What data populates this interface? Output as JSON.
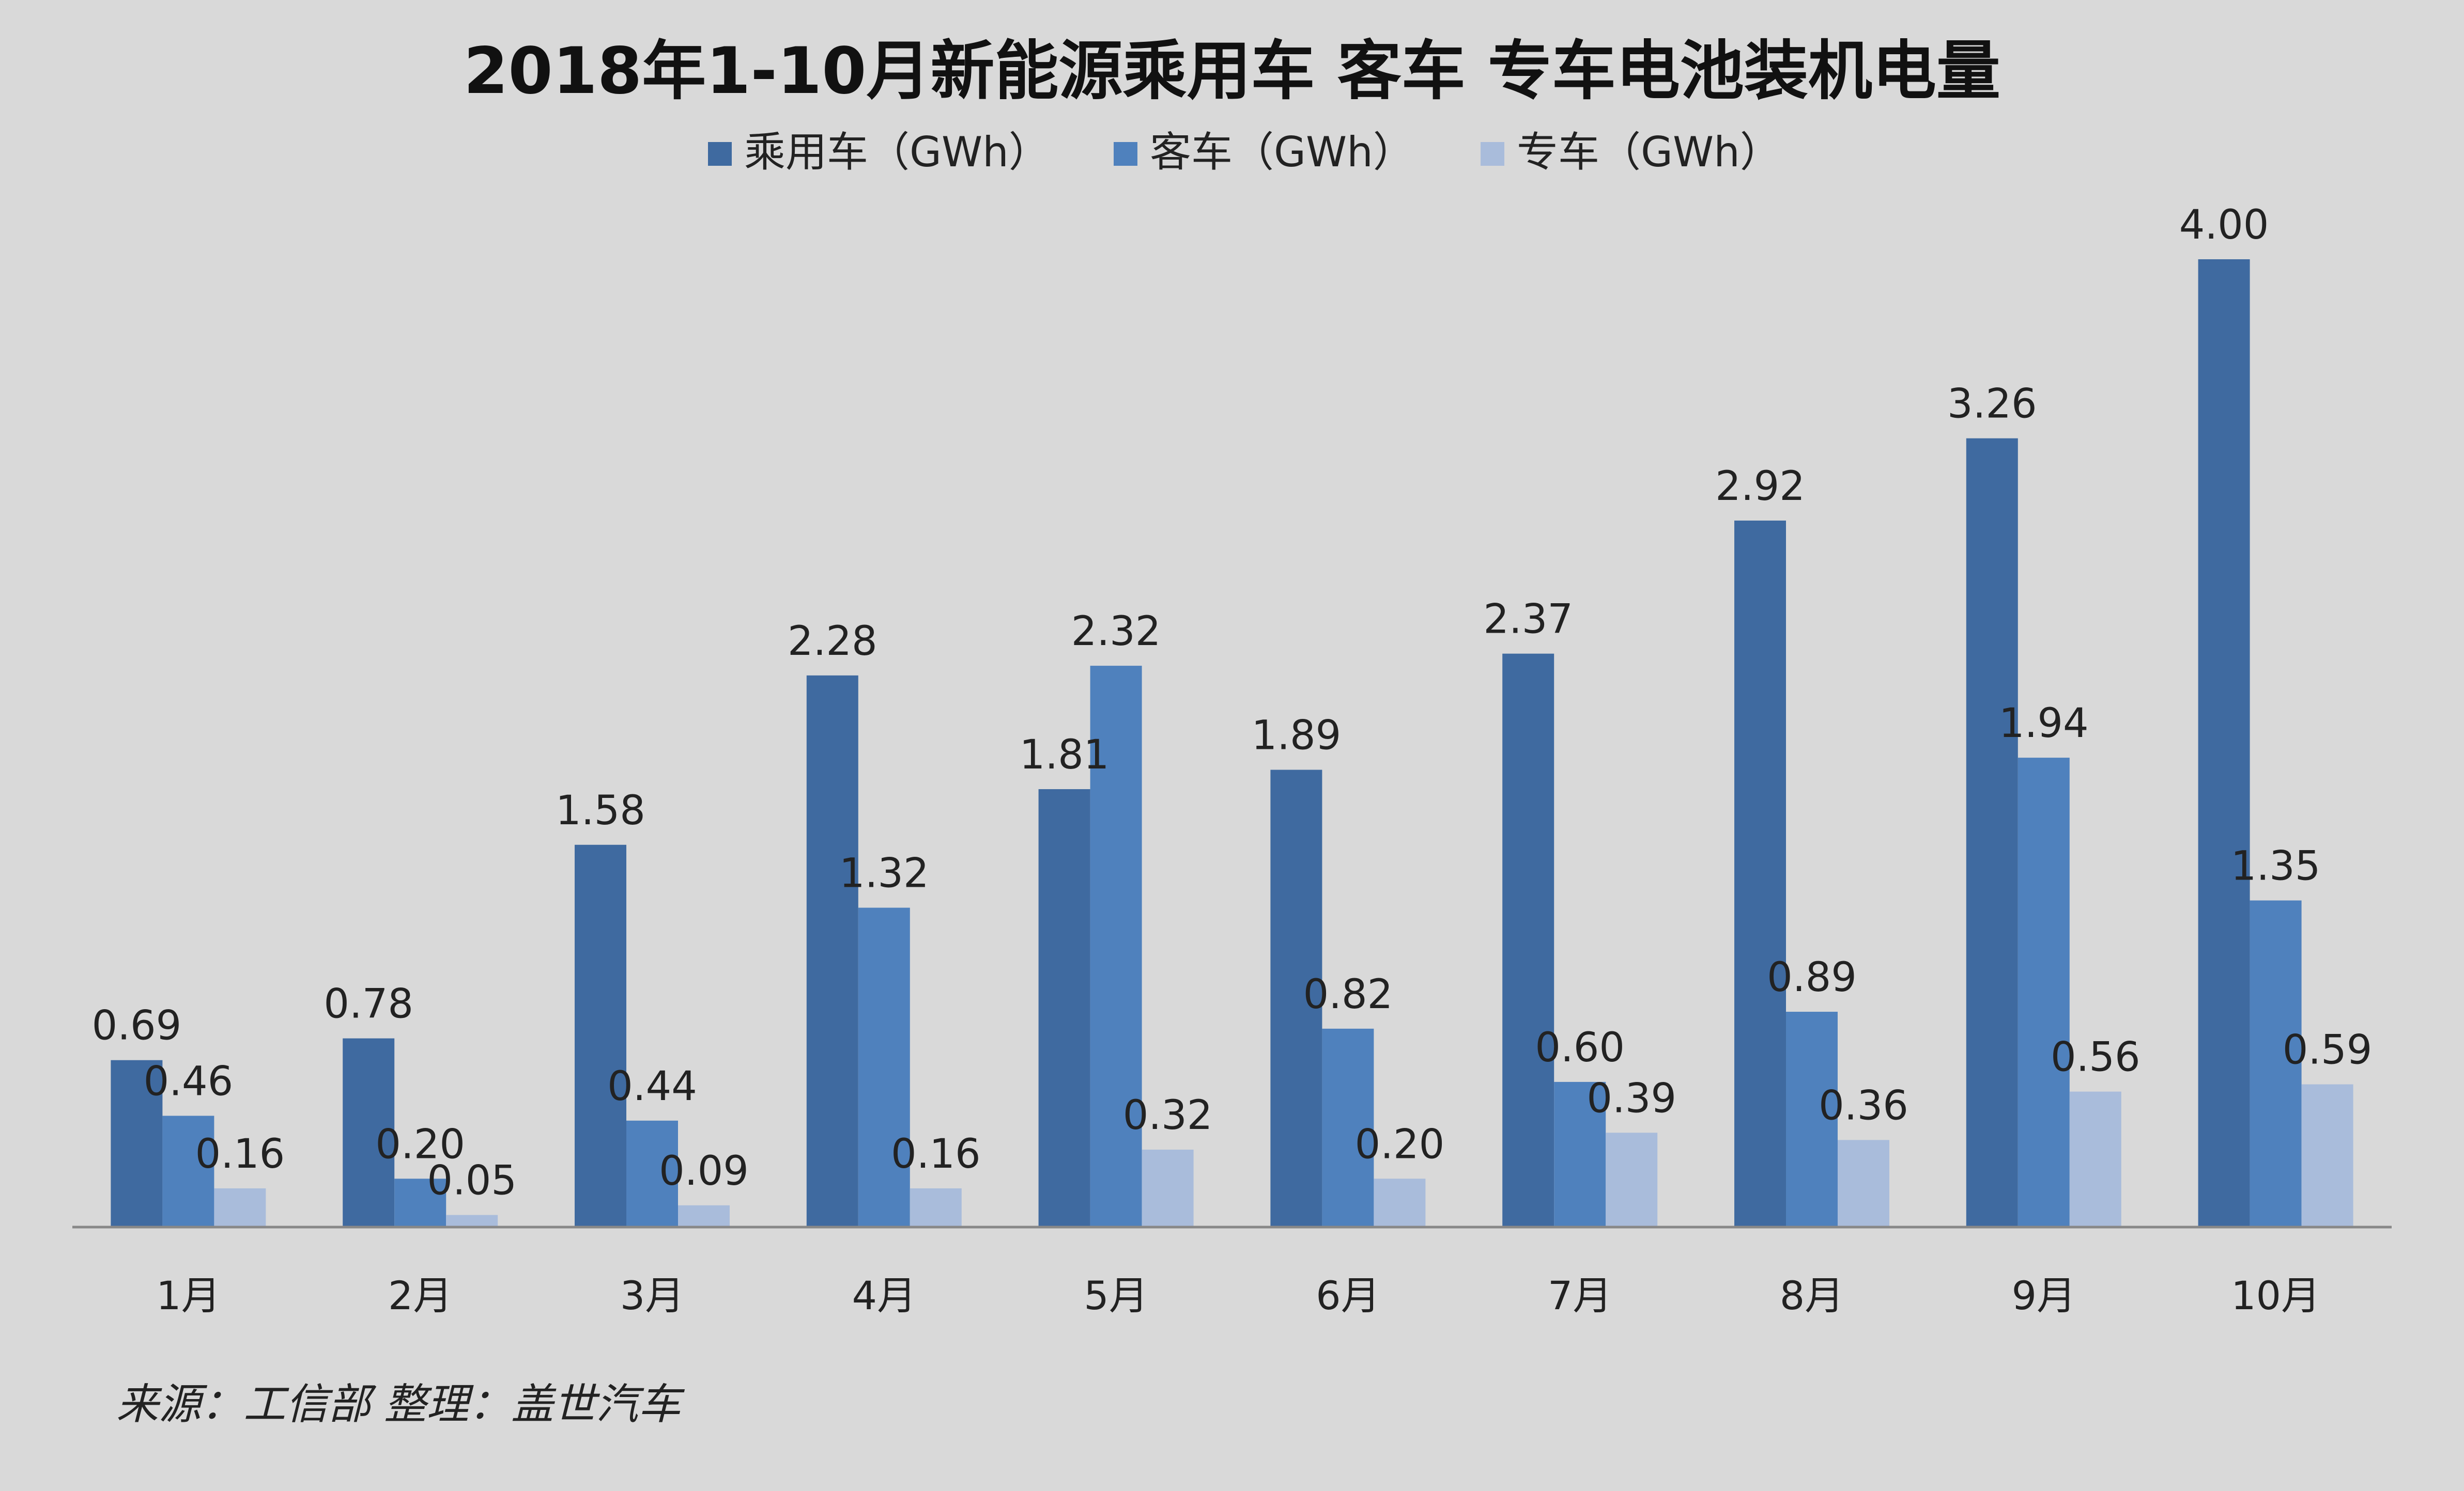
{
  "chart_data": {
    "type": "bar",
    "title": "2018年1-10月新能源乘用车 客车 专车电池装机电量",
    "categories": [
      "1月",
      "2月",
      "3月",
      "4月",
      "5月",
      "6月",
      "7月",
      "8月",
      "9月",
      "10月"
    ],
    "series": [
      {
        "name": "乘用车（GWh）",
        "color": "#3f6aa0",
        "values": [
          0.69,
          0.78,
          1.58,
          2.28,
          1.81,
          1.89,
          2.37,
          2.92,
          3.26,
          4.0
        ],
        "labels": [
          "0.69",
          "0.78",
          "1.58",
          "2.28",
          "1.81",
          "1.89",
          "2.37",
          "2.92",
          "3.26",
          "4.00"
        ]
      },
      {
        "name": "客车（GWh）",
        "color": "#4f81bd",
        "values": [
          0.46,
          0.2,
          0.44,
          1.32,
          2.32,
          0.82,
          0.6,
          0.89,
          1.94,
          1.35
        ],
        "labels": [
          "0.46",
          "0.20",
          "0.44",
          "1.32",
          "2.32",
          "0.82",
          "0.60",
          "0.89",
          "1.94",
          "1.35"
        ]
      },
      {
        "name": "专车（GWh）",
        "color": "#a9bcdb",
        "values": [
          0.16,
          0.05,
          0.09,
          0.16,
          0.32,
          0.2,
          0.39,
          0.36,
          0.56,
          0.59
        ],
        "labels": [
          "0.16",
          "0.05",
          "0.09",
          "0.16",
          "0.32",
          "0.20",
          "0.39",
          "0.36",
          "0.56",
          "0.59"
        ]
      }
    ],
    "ylim": [
      0,
      4.0
    ],
    "legend_position": "top",
    "grid": false
  },
  "footer": {
    "source": "来源：工信部 整理：盖世汽车"
  }
}
